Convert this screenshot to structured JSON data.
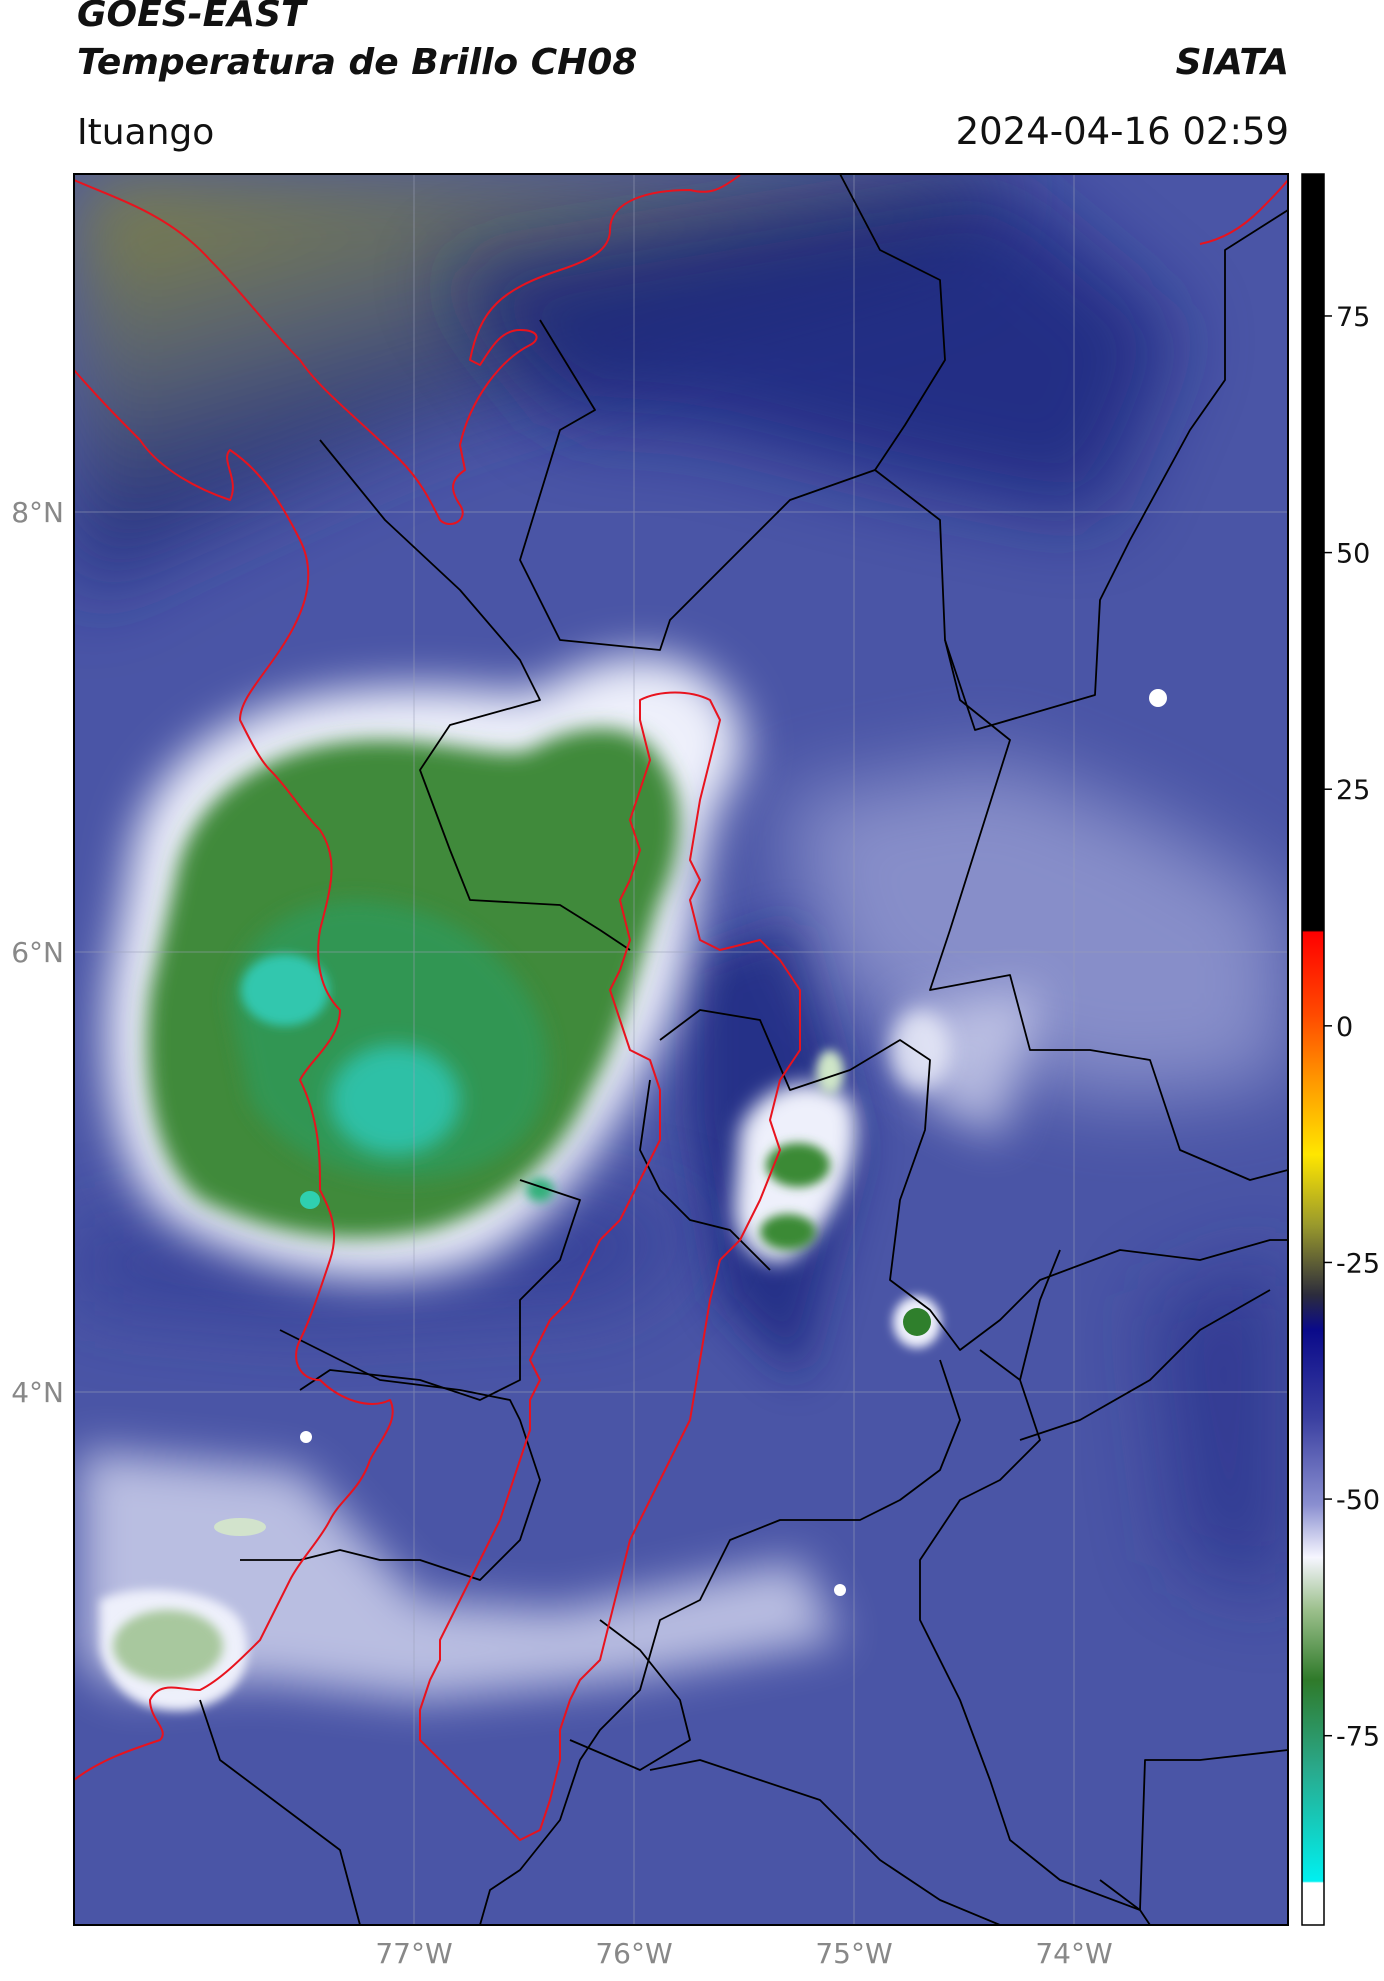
{
  "header": {
    "satellite": "GOES-EAST",
    "product": "Temperatura de Brillo CH08",
    "organization": "SIATA",
    "location": "Ituango",
    "timestamp": "2024-04-16 02:59"
  },
  "map": {
    "lon_range": [
      -78.55,
      -73.05
    ],
    "lat_range": [
      2.0,
      9.55
    ],
    "lon_ticks": [
      {
        "value": -77,
        "label": "77°W"
      },
      {
        "value": -76,
        "label": "76°W"
      },
      {
        "value": -75,
        "label": "75°W"
      },
      {
        "value": -74,
        "label": "74°W"
      }
    ],
    "lat_ticks": [
      {
        "value": 8,
        "label": "8°N"
      },
      {
        "value": 6,
        "label": "6°N"
      },
      {
        "value": 4,
        "label": "4°N"
      }
    ],
    "grid": true,
    "colors": {
      "background": "#4a55a6",
      "cold_cloud": "#3f8a3a",
      "very_cold": "#22c8b0",
      "cloud_edge": "#eef0fb",
      "warm_north": "#7e7f40",
      "coast": "#e8131e",
      "borders": "#000000"
    }
  },
  "colorbar": {
    "vmin": -95,
    "vmax": 90,
    "ticks": [
      {
        "value": 75,
        "label": "75"
      },
      {
        "value": 50,
        "label": "50"
      },
      {
        "value": 25,
        "label": "25"
      },
      {
        "value": 0,
        "label": "0"
      },
      {
        "value": -25,
        "label": "-25"
      },
      {
        "value": -50,
        "label": "-50"
      },
      {
        "value": -75,
        "label": "-75"
      }
    ]
  }
}
